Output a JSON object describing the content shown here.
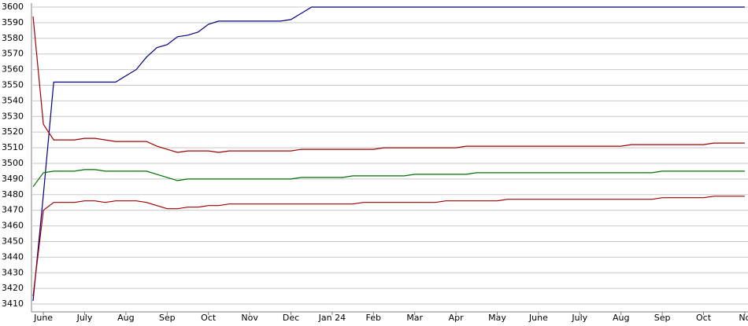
{
  "chart_data": {
    "type": "line",
    "categories": [
      null,
      "June",
      null,
      null,
      null,
      "July",
      null,
      null,
      null,
      "Aug",
      null,
      null,
      null,
      "Sep",
      null,
      null,
      null,
      "Oct",
      null,
      null,
      null,
      "Nov",
      null,
      null,
      null,
      "Dec",
      null,
      null,
      null,
      "Jan 24",
      null,
      null,
      null,
      "Feb",
      null,
      null,
      null,
      "Mar",
      null,
      null,
      null,
      "Apr",
      null,
      null,
      null,
      "May",
      null,
      null,
      null,
      "June",
      null,
      null,
      null,
      "July",
      null,
      null,
      null,
      "Aug",
      null,
      null,
      null,
      "Sep",
      null,
      null,
      null,
      "Oct",
      null,
      null,
      null,
      "No"
    ],
    "series": [
      {
        "color": "#000080",
        "values": [
          3412,
          3480,
          3552,
          3552,
          3552,
          3552,
          3552,
          3552,
          3552,
          3556,
          3560,
          3568,
          3574,
          3576,
          3581,
          3582,
          3584,
          3589,
          3591,
          3591,
          3591,
          3591,
          3591,
          3591,
          3591,
          3592,
          3596,
          3600,
          3600,
          3600,
          3600,
          3600,
          3600,
          3600,
          3600,
          3600,
          3600,
          3600,
          3600,
          3600,
          3600,
          3600,
          3600,
          3600,
          3600,
          3600,
          3600,
          3600,
          3600,
          3600,
          3600,
          3600,
          3600,
          3600,
          3600,
          3600,
          3600,
          3600,
          3600,
          3600,
          3600,
          3600,
          3600,
          3600,
          3600,
          3600,
          3600,
          3600,
          3600,
          3600
        ]
      },
      {
        "color": "#a00000",
        "values": [
          3594,
          3525,
          3515,
          3515,
          3515,
          3516,
          3516,
          3515,
          3514,
          3514,
          3514,
          3514,
          3511,
          3509,
          3507,
          3508,
          3508,
          3508,
          3507,
          3508,
          3508,
          3508,
          3508,
          3508,
          3508,
          3508,
          3509,
          3509,
          3509,
          3509,
          3509,
          3509,
          3509,
          3509,
          3510,
          3510,
          3510,
          3510,
          3510,
          3510,
          3510,
          3510,
          3511,
          3511,
          3511,
          3511,
          3511,
          3511,
          3511,
          3511,
          3511,
          3511,
          3511,
          3511,
          3511,
          3511,
          3511,
          3511,
          3512,
          3512,
          3512,
          3512,
          3512,
          3512,
          3512,
          3512,
          3513,
          3513,
          3513,
          3513
        ]
      },
      {
        "color": "#007000",
        "values": [
          3485,
          3494,
          3495,
          3495,
          3495,
          3496,
          3496,
          3495,
          3495,
          3495,
          3495,
          3495,
          3493,
          3491,
          3489,
          3490,
          3490,
          3490,
          3490,
          3490,
          3490,
          3490,
          3490,
          3490,
          3490,
          3490,
          3491,
          3491,
          3491,
          3491,
          3491,
          3492,
          3492,
          3492,
          3492,
          3492,
          3492,
          3493,
          3493,
          3493,
          3493,
          3493,
          3493,
          3494,
          3494,
          3494,
          3494,
          3494,
          3494,
          3494,
          3494,
          3494,
          3494,
          3494,
          3494,
          3494,
          3494,
          3494,
          3494,
          3494,
          3494,
          3495,
          3495,
          3495,
          3495,
          3495,
          3495,
          3495,
          3495,
          3495
        ]
      },
      {
        "color": "#a00000",
        "values": [
          3415,
          3470,
          3475,
          3475,
          3475,
          3476,
          3476,
          3475,
          3476,
          3476,
          3476,
          3475,
          3473,
          3471,
          3471,
          3472,
          3472,
          3473,
          3473,
          3474,
          3474,
          3474,
          3474,
          3474,
          3474,
          3474,
          3474,
          3474,
          3474,
          3474,
          3474,
          3474,
          3475,
          3475,
          3475,
          3475,
          3475,
          3475,
          3475,
          3475,
          3476,
          3476,
          3476,
          3476,
          3476,
          3476,
          3477,
          3477,
          3477,
          3477,
          3477,
          3477,
          3477,
          3477,
          3477,
          3477,
          3477,
          3477,
          3477,
          3477,
          3477,
          3478,
          3478,
          3478,
          3478,
          3478,
          3479,
          3479,
          3479,
          3479
        ]
      }
    ],
    "ylim": [
      3405,
      3600
    ],
    "yticks": [
      3410,
      3420,
      3430,
      3440,
      3450,
      3460,
      3470,
      3480,
      3490,
      3500,
      3510,
      3520,
      3530,
      3540,
      3550,
      3560,
      3570,
      3580,
      3590,
      3600
    ],
    "grid": true
  }
}
